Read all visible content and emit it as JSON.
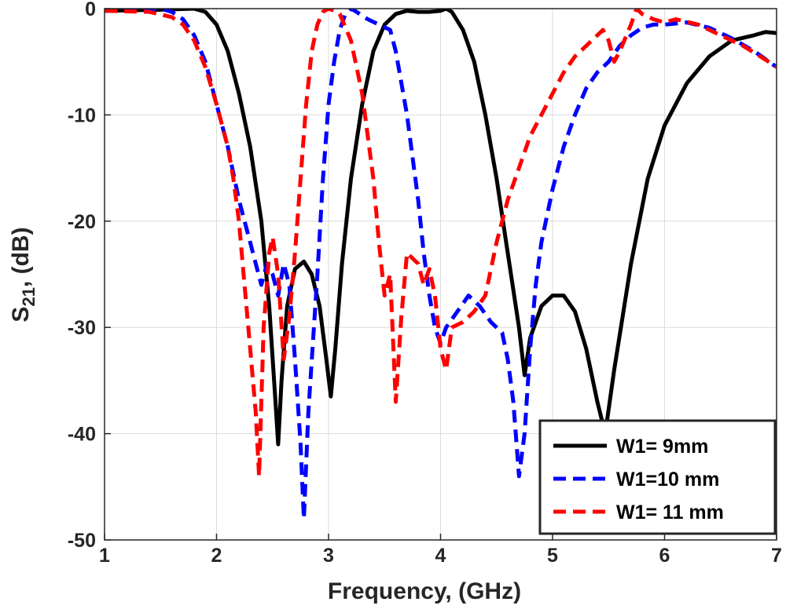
{
  "chart_data": {
    "type": "line",
    "title": "",
    "xlabel": "Frequency, (GHz)",
    "ylabel": {
      "main": "S",
      "subscript": "21",
      "suffix": ", (dB)"
    },
    "xlim": [
      1,
      7
    ],
    "ylim": [
      -50,
      0
    ],
    "xticks": [
      1,
      2,
      3,
      4,
      5,
      6,
      7
    ],
    "yticks": [
      0,
      -10,
      -20,
      -30,
      -40,
      -50
    ],
    "grid": true,
    "legend_position": "bottom-right",
    "series": [
      {
        "name": "W1= 9mm",
        "color": "#000000",
        "style": "solid",
        "points": [
          [
            1.0,
            -0.2
          ],
          [
            1.5,
            -0.1
          ],
          [
            1.8,
            0.0
          ],
          [
            1.9,
            -0.3
          ],
          [
            2.0,
            -1.5
          ],
          [
            2.1,
            -4.0
          ],
          [
            2.2,
            -8.0
          ],
          [
            2.3,
            -13.0
          ],
          [
            2.4,
            -20.0
          ],
          [
            2.47,
            -28.0
          ],
          [
            2.52,
            -36.0
          ],
          [
            2.55,
            -41.0
          ],
          [
            2.58,
            -35.0
          ],
          [
            2.63,
            -28.0
          ],
          [
            2.7,
            -24.5
          ],
          [
            2.78,
            -23.8
          ],
          [
            2.85,
            -25.0
          ],
          [
            2.92,
            -28.0
          ],
          [
            2.98,
            -33.0
          ],
          [
            3.02,
            -36.5
          ],
          [
            3.06,
            -32.0
          ],
          [
            3.12,
            -24.0
          ],
          [
            3.2,
            -16.0
          ],
          [
            3.3,
            -9.0
          ],
          [
            3.4,
            -4.0
          ],
          [
            3.5,
            -1.5
          ],
          [
            3.6,
            -0.5
          ],
          [
            3.7,
            -0.2
          ],
          [
            3.8,
            -0.3
          ],
          [
            3.9,
            -0.3
          ],
          [
            4.0,
            -0.2
          ],
          [
            4.05,
            0.0
          ],
          [
            4.1,
            -0.3
          ],
          [
            4.2,
            -2.0
          ],
          [
            4.3,
            -5.0
          ],
          [
            4.4,
            -10.0
          ],
          [
            4.5,
            -16.0
          ],
          [
            4.6,
            -23.0
          ],
          [
            4.7,
            -30.0
          ],
          [
            4.75,
            -34.5
          ],
          [
            4.8,
            -31.0
          ],
          [
            4.9,
            -28.0
          ],
          [
            5.0,
            -27.0
          ],
          [
            5.1,
            -27.0
          ],
          [
            5.2,
            -28.5
          ],
          [
            5.3,
            -32.0
          ],
          [
            5.4,
            -37.0
          ],
          [
            5.47,
            -40.0
          ],
          [
            5.55,
            -34.0
          ],
          [
            5.7,
            -24.0
          ],
          [
            5.85,
            -16.0
          ],
          [
            6.0,
            -11.0
          ],
          [
            6.2,
            -7.0
          ],
          [
            6.4,
            -4.5
          ],
          [
            6.6,
            -3.0
          ],
          [
            6.8,
            -2.5
          ],
          [
            6.9,
            -2.2
          ],
          [
            7.0,
            -2.3
          ]
        ]
      },
      {
        "name": "W1=10 mm",
        "color": "#0000FF",
        "style": "dashed",
        "points": [
          [
            1.0,
            -0.2
          ],
          [
            1.5,
            0.0
          ],
          [
            1.6,
            -0.3
          ],
          [
            1.7,
            -1.0
          ],
          [
            1.8,
            -2.5
          ],
          [
            1.9,
            -5.0
          ],
          [
            2.0,
            -9.0
          ],
          [
            2.1,
            -13.0
          ],
          [
            2.2,
            -18.0
          ],
          [
            2.3,
            -22.0
          ],
          [
            2.35,
            -24.0
          ],
          [
            2.4,
            -26.0
          ],
          [
            2.45,
            -24.0
          ],
          [
            2.5,
            -25.0
          ],
          [
            2.55,
            -27.0
          ],
          [
            2.6,
            -24.0
          ],
          [
            2.65,
            -26.0
          ],
          [
            2.7,
            -33.0
          ],
          [
            2.75,
            -41.0
          ],
          [
            2.78,
            -48.0
          ],
          [
            2.82,
            -38.0
          ],
          [
            2.9,
            -25.0
          ],
          [
            2.95,
            -16.0
          ],
          [
            3.0,
            -9.0
          ],
          [
            3.05,
            -5.0
          ],
          [
            3.1,
            -2.0
          ],
          [
            3.15,
            -0.5
          ],
          [
            3.2,
            0.0
          ],
          [
            3.25,
            -0.3
          ],
          [
            3.35,
            -1.0
          ],
          [
            3.45,
            -1.5
          ],
          [
            3.55,
            -2.0
          ],
          [
            3.6,
            -4.0
          ],
          [
            3.7,
            -10.0
          ],
          [
            3.8,
            -18.0
          ],
          [
            3.85,
            -23.0
          ],
          [
            3.9,
            -27.0
          ],
          [
            3.95,
            -30.0
          ],
          [
            4.0,
            -31.5
          ],
          [
            4.05,
            -30.0
          ],
          [
            4.15,
            -28.5
          ],
          [
            4.25,
            -27.0
          ],
          [
            4.35,
            -28.0
          ],
          [
            4.45,
            -29.5
          ],
          [
            4.55,
            -30.5
          ],
          [
            4.6,
            -33.0
          ],
          [
            4.65,
            -37.0
          ],
          [
            4.7,
            -44.0
          ],
          [
            4.75,
            -40.0
          ],
          [
            4.8,
            -32.0
          ],
          [
            4.85,
            -26.0
          ],
          [
            4.9,
            -22.0
          ],
          [
            5.0,
            -17.0
          ],
          [
            5.1,
            -13.0
          ],
          [
            5.2,
            -10.0
          ],
          [
            5.3,
            -7.5
          ],
          [
            5.4,
            -6.0
          ],
          [
            5.5,
            -5.0
          ],
          [
            5.6,
            -3.5
          ],
          [
            5.7,
            -2.5
          ],
          [
            5.8,
            -1.8
          ],
          [
            5.9,
            -1.5
          ],
          [
            6.0,
            -1.5
          ],
          [
            6.2,
            -1.3
          ],
          [
            6.4,
            -1.8
          ],
          [
            6.6,
            -2.8
          ],
          [
            6.8,
            -4.0
          ],
          [
            7.0,
            -5.5
          ]
        ]
      },
      {
        "name": "W1= 11 mm",
        "color": "#FF0000",
        "style": "dashed",
        "points": [
          [
            1.0,
            -0.2
          ],
          [
            1.4,
            -0.3
          ],
          [
            1.6,
            -0.8
          ],
          [
            1.7,
            -1.5
          ],
          [
            1.8,
            -3.0
          ],
          [
            1.9,
            -5.5
          ],
          [
            2.0,
            -9.0
          ],
          [
            2.1,
            -13.0
          ],
          [
            2.15,
            -16.0
          ],
          [
            2.2,
            -20.0
          ],
          [
            2.25,
            -26.0
          ],
          [
            2.3,
            -32.0
          ],
          [
            2.35,
            -38.0
          ],
          [
            2.38,
            -44.0
          ],
          [
            2.42,
            -30.0
          ],
          [
            2.47,
            -23.0
          ],
          [
            2.5,
            -21.5
          ],
          [
            2.55,
            -25.0
          ],
          [
            2.6,
            -33.0
          ],
          [
            2.65,
            -29.0
          ],
          [
            2.7,
            -23.0
          ],
          [
            2.75,
            -16.0
          ],
          [
            2.8,
            -9.0
          ],
          [
            2.85,
            -4.0
          ],
          [
            2.9,
            -1.5
          ],
          [
            2.95,
            -0.3
          ],
          [
            3.0,
            0.0
          ],
          [
            3.05,
            -0.2
          ],
          [
            3.1,
            -0.5
          ],
          [
            3.2,
            -3.0
          ],
          [
            3.3,
            -8.0
          ],
          [
            3.4,
            -16.0
          ],
          [
            3.45,
            -22.0
          ],
          [
            3.5,
            -27.0
          ],
          [
            3.55,
            -25.0
          ],
          [
            3.6,
            -37.0
          ],
          [
            3.65,
            -29.0
          ],
          [
            3.7,
            -23.0
          ],
          [
            3.8,
            -24.0
          ],
          [
            3.85,
            -26.0
          ],
          [
            3.9,
            -24.5
          ],
          [
            3.95,
            -27.0
          ],
          [
            4.0,
            -32.0
          ],
          [
            4.05,
            -34.0
          ],
          [
            4.1,
            -30.0
          ],
          [
            4.2,
            -29.5
          ],
          [
            4.3,
            -28.5
          ],
          [
            4.4,
            -27.0
          ],
          [
            4.5,
            -22.0
          ],
          [
            4.6,
            -18.0
          ],
          [
            4.7,
            -15.0
          ],
          [
            4.8,
            -12.0
          ],
          [
            4.9,
            -10.0
          ],
          [
            5.0,
            -8.0
          ],
          [
            5.1,
            -6.0
          ],
          [
            5.2,
            -4.5
          ],
          [
            5.3,
            -3.5
          ],
          [
            5.4,
            -2.5
          ],
          [
            5.45,
            -2.0
          ],
          [
            5.5,
            -3.0
          ],
          [
            5.55,
            -5.0
          ],
          [
            5.6,
            -4.0
          ],
          [
            5.7,
            -1.5
          ],
          [
            5.75,
            0.0
          ],
          [
            5.8,
            -0.5
          ],
          [
            5.9,
            -1.0
          ],
          [
            6.0,
            -1.3
          ],
          [
            6.1,
            -1.0
          ],
          [
            6.3,
            -1.5
          ],
          [
            6.5,
            -2.5
          ],
          [
            6.7,
            -3.5
          ],
          [
            6.9,
            -4.8
          ],
          [
            7.0,
            -5.5
          ]
        ]
      }
    ]
  }
}
